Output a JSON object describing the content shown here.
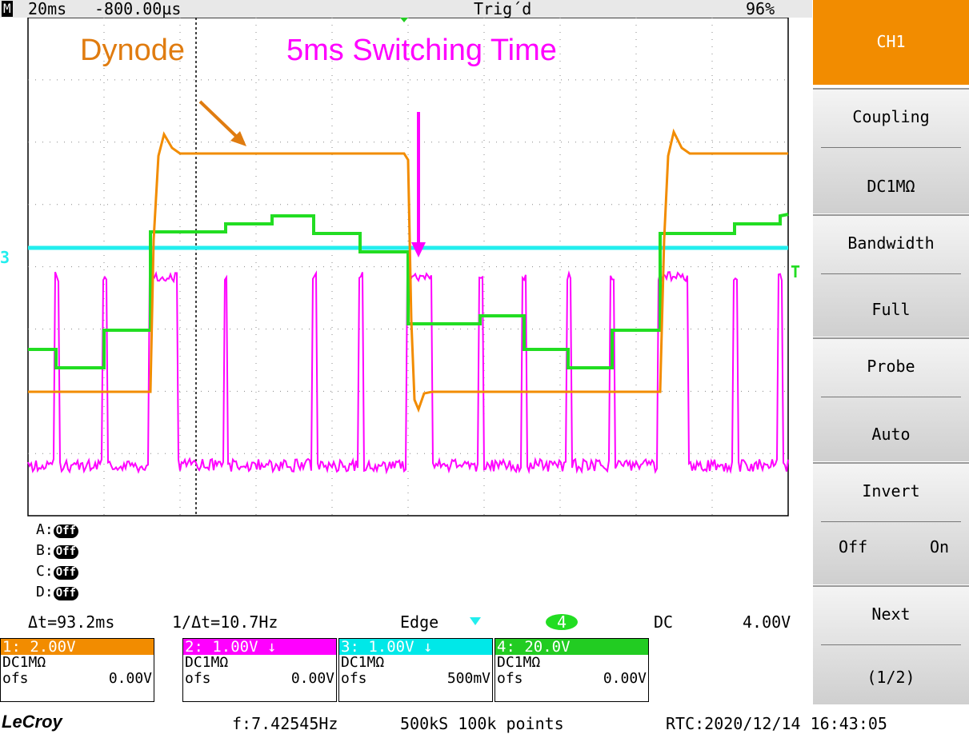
{
  "header": {
    "mode": "M",
    "timebase": "20ms",
    "delay": "-800.00µs",
    "status": "Trig´d",
    "battery": "96%"
  },
  "annotations": {
    "dynode": "Dynode",
    "switching": "5ms Switching Time"
  },
  "markers": {
    "ch3": "3",
    "trigger": "T"
  },
  "math": [
    {
      "label": "A:",
      "state": "Off"
    },
    {
      "label": "B:",
      "state": "Off"
    },
    {
      "label": "C:",
      "state": "Off"
    },
    {
      "label": "D:",
      "state": "Off"
    }
  ],
  "measure": {
    "delta_t": "Δt=93.2ms",
    "inverse": "1/Δt=10.7Hz",
    "trigger_type": "Edge",
    "trigger_source": "4",
    "trigger_coupling": "DC",
    "trigger_level": "4.00V"
  },
  "channels": [
    {
      "scale": "1: 2.00V",
      "coupling": "DC1MΩ",
      "offset_label": "ofs",
      "offset": "0.00V"
    },
    {
      "scale": "2: 1.00V ↓",
      "coupling": "DC1MΩ",
      "offset_label": "ofs",
      "offset": "0.00V"
    },
    {
      "scale": "3: 1.00V ↓",
      "coupling": "DC1MΩ",
      "offset_label": "ofs",
      "offset": "500mV"
    },
    {
      "scale": "4: 20.0V",
      "coupling": "DC1MΩ",
      "offset_label": "ofs",
      "offset": "0.00V"
    }
  ],
  "panel": {
    "title": "CH1",
    "buttons": [
      {
        "label": "Coupling",
        "value": "DC1MΩ"
      },
      {
        "label": "Bandwidth",
        "value": "Full"
      },
      {
        "label": "Probe",
        "value": "Auto"
      },
      {
        "label": "Invert",
        "options": [
          "Off",
          "On"
        ]
      },
      {
        "label": "Next",
        "value": "(1/2)"
      }
    ]
  },
  "footer": {
    "brand": "LeCroy",
    "frequency": "f:7.42545Hz",
    "sampling": "500kS 100k points",
    "rtc": "RTC:2020/12/14 16:43:05"
  }
}
